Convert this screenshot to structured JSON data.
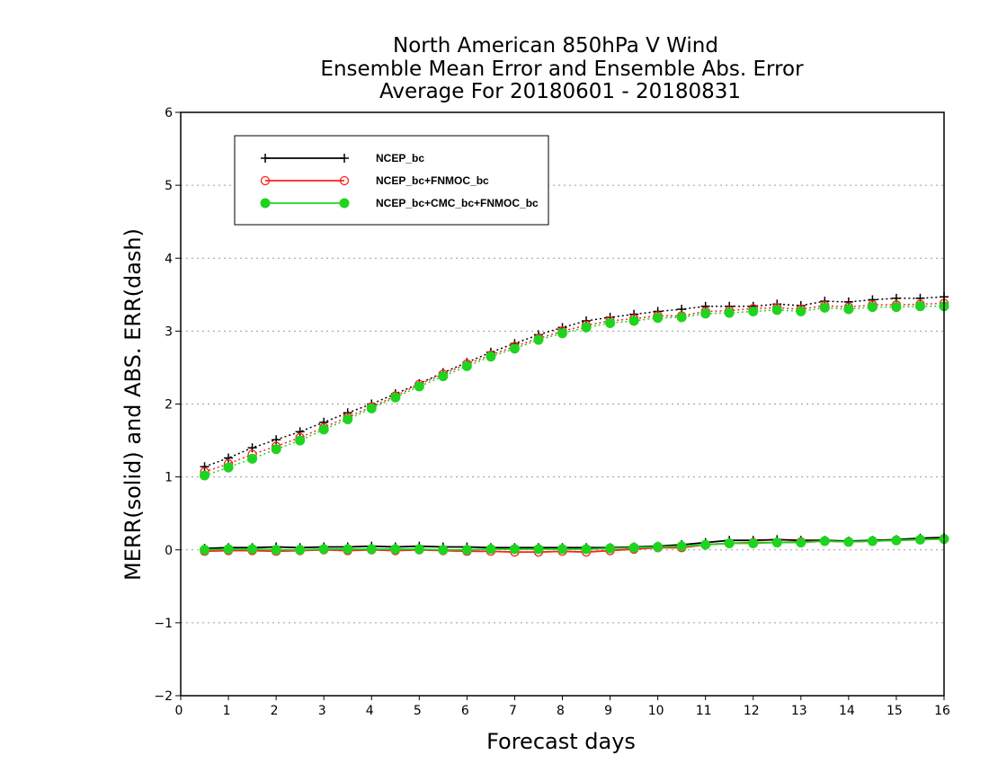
{
  "chart_data": {
    "type": "line",
    "title_lines": [
      "North American 850hPa V Wind",
      "Ensemble Mean Error and Ensemble Abs. Error",
      "Average For 20180601 - 20180831"
    ],
    "xlabel": "Forecast days",
    "ylabel": "MERR(solid) and ABS. ERR(dash)",
    "xlim": [
      0,
      16
    ],
    "ylim": [
      -2,
      6
    ],
    "x_ticks": [
      "0",
      "1",
      "2",
      "3",
      "4",
      "5",
      "6",
      "7",
      "8",
      "9",
      "10",
      "11",
      "12",
      "13",
      "14",
      "15",
      "16"
    ],
    "y_ticks": [
      "−2",
      "−1",
      "0",
      "1",
      "2",
      "3",
      "4",
      "5",
      "6"
    ],
    "grid": "horizontal dotted",
    "legend_position": "top-left",
    "x": [
      0.5,
      1,
      1.5,
      2,
      2.5,
      3,
      3.5,
      4,
      4.5,
      5,
      5.5,
      6,
      6.5,
      7,
      7.5,
      8,
      8.5,
      9,
      9.5,
      10,
      10.5,
      11,
      11.5,
      12,
      12.5,
      13,
      13.5,
      14,
      14.5,
      15,
      15.5,
      16
    ],
    "series": [
      {
        "name": "NCEP_bc",
        "color": "#000000",
        "marker": "plus",
        "merr": [
          0.02,
          0.03,
          0.03,
          0.04,
          0.03,
          0.04,
          0.04,
          0.05,
          0.04,
          0.05,
          0.04,
          0.04,
          0.03,
          0.03,
          0.03,
          0.03,
          0.03,
          0.03,
          0.04,
          0.05,
          0.07,
          0.1,
          0.13,
          0.13,
          0.14,
          0.13,
          0.13,
          0.12,
          0.13,
          0.14,
          0.16,
          0.17
        ],
        "abs_err": [
          1.14,
          1.26,
          1.4,
          1.51,
          1.62,
          1.75,
          1.88,
          2.0,
          2.14,
          2.28,
          2.43,
          2.57,
          2.71,
          2.83,
          2.95,
          3.05,
          3.14,
          3.19,
          3.23,
          3.27,
          3.3,
          3.34,
          3.34,
          3.34,
          3.37,
          3.35,
          3.41,
          3.4,
          3.43,
          3.45,
          3.45,
          3.47
        ]
      },
      {
        "name": "NCEP_bc+FNMOC_bc",
        "color": "#ff2020",
        "marker": "open-circle",
        "merr": [
          -0.02,
          -0.01,
          -0.01,
          -0.02,
          -0.01,
          0.0,
          -0.01,
          0.0,
          -0.01,
          0.0,
          -0.01,
          -0.02,
          -0.02,
          -0.03,
          -0.03,
          -0.02,
          -0.03,
          -0.01,
          0.01,
          0.03,
          0.03,
          0.07,
          0.09,
          0.1,
          0.1,
          0.11,
          0.12,
          0.11,
          0.12,
          0.13,
          0.14,
          0.15
        ],
        "abs_err": [
          1.07,
          1.18,
          1.31,
          1.42,
          1.54,
          1.68,
          1.82,
          1.96,
          2.11,
          2.27,
          2.41,
          2.55,
          2.67,
          2.79,
          2.9,
          3.0,
          3.08,
          3.14,
          3.17,
          3.21,
          3.21,
          3.27,
          3.28,
          3.31,
          3.32,
          3.3,
          3.35,
          3.33,
          3.36,
          3.36,
          3.37,
          3.38
        ]
      },
      {
        "name": "NCEP_bc+CMC_bc+FNMOC_bc",
        "color": "#1ed41e",
        "marker": "filled-circle",
        "merr": [
          0.0,
          0.01,
          0.01,
          0.0,
          0.0,
          0.01,
          0.01,
          0.01,
          0.01,
          0.01,
          0.0,
          0.0,
          0.01,
          0.01,
          0.01,
          0.01,
          0.01,
          0.02,
          0.03,
          0.04,
          0.05,
          0.07,
          0.09,
          0.09,
          0.1,
          0.1,
          0.12,
          0.11,
          0.12,
          0.13,
          0.14,
          0.15
        ],
        "abs_err": [
          1.02,
          1.13,
          1.25,
          1.38,
          1.5,
          1.65,
          1.79,
          1.94,
          2.09,
          2.24,
          2.38,
          2.52,
          2.65,
          2.76,
          2.88,
          2.97,
          3.05,
          3.11,
          3.14,
          3.18,
          3.19,
          3.24,
          3.25,
          3.27,
          3.29,
          3.27,
          3.32,
          3.3,
          3.33,
          3.33,
          3.34,
          3.34
        ]
      }
    ]
  }
}
